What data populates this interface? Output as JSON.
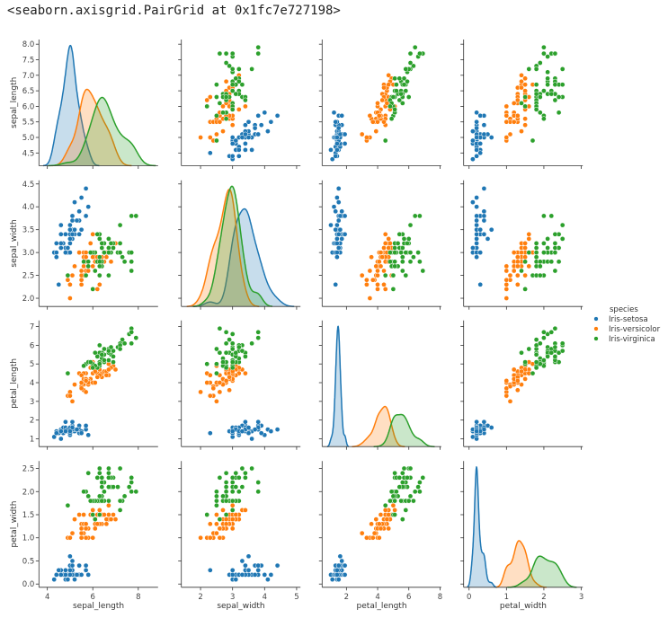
{
  "output_text": "<seaborn.axisgrid.PairGrid at 0x1fc7e727198>",
  "chart_data": {
    "type": "scatter",
    "kind": "pairplot",
    "diag_kind": "kde",
    "variables": [
      "sepal_length",
      "sepal_width",
      "petal_length",
      "petal_width"
    ],
    "axis_ranges": {
      "sepal_length": [
        3.63,
        8.87
      ],
      "sepal_width": [
        1.4,
        5.12
      ],
      "petal_length": [
        0.44,
        8.08
      ],
      "petal_width": [
        -0.145,
        3.04
      ]
    },
    "y_axis_ranges": {
      "sepal_length": [
        4.09,
        8.15
      ],
      "sepal_width": [
        1.82,
        4.58
      ],
      "petal_length": [
        0.58,
        7.33
      ],
      "petal_width": [
        -0.07,
        2.66
      ]
    },
    "x_ticks": {
      "sepal_length": [
        "4",
        "6",
        "8"
      ],
      "sepal_width": [
        "2",
        "3",
        "4",
        "5"
      ],
      "petal_length": [
        "2",
        "4",
        "6",
        "8"
      ],
      "petal_width": [
        "0",
        "1",
        "2",
        "3"
      ]
    },
    "y_ticks": {
      "sepal_length": [
        "4.5",
        "5.0",
        "5.5",
        "6.0",
        "6.5",
        "7.0",
        "7.5",
        "8.0"
      ],
      "sepal_width": [
        "2.0",
        "2.5",
        "3.0",
        "3.5",
        "4.0",
        "4.5"
      ],
      "petal_length": [
        "1",
        "2",
        "3",
        "4",
        "5",
        "6",
        "7"
      ],
      "petal_width": [
        "0.0",
        "0.5",
        "1.0",
        "1.5",
        "2.0",
        "2.5"
      ]
    },
    "grid": false,
    "legend": {
      "title": "species",
      "placement": "right",
      "entries": [
        "Iris-setosa",
        "Iris-versicolor",
        "Iris-virginica"
      ],
      "colors": [
        "#1f77b4",
        "#ff7f0e",
        "#2ca02c"
      ]
    },
    "rows": [
      [
        5.1,
        3.5,
        1.4,
        0.2,
        0
      ],
      [
        4.9,
        3.0,
        1.4,
        0.2,
        0
      ],
      [
        4.7,
        3.2,
        1.3,
        0.2,
        0
      ],
      [
        4.6,
        3.1,
        1.5,
        0.2,
        0
      ],
      [
        5.0,
        3.6,
        1.4,
        0.2,
        0
      ],
      [
        5.4,
        3.9,
        1.7,
        0.4,
        0
      ],
      [
        4.6,
        3.4,
        1.4,
        0.3,
        0
      ],
      [
        5.0,
        3.4,
        1.5,
        0.2,
        0
      ],
      [
        4.4,
        2.9,
        1.4,
        0.2,
        0
      ],
      [
        4.9,
        3.1,
        1.5,
        0.1,
        0
      ],
      [
        5.4,
        3.7,
        1.5,
        0.2,
        0
      ],
      [
        4.8,
        3.4,
        1.6,
        0.2,
        0
      ],
      [
        4.8,
        3.0,
        1.4,
        0.1,
        0
      ],
      [
        4.3,
        3.0,
        1.1,
        0.1,
        0
      ],
      [
        5.8,
        4.0,
        1.2,
        0.2,
        0
      ],
      [
        5.7,
        4.4,
        1.5,
        0.4,
        0
      ],
      [
        5.4,
        3.9,
        1.3,
        0.4,
        0
      ],
      [
        5.1,
        3.5,
        1.4,
        0.3,
        0
      ],
      [
        5.7,
        3.8,
        1.7,
        0.3,
        0
      ],
      [
        5.1,
        3.8,
        1.5,
        0.3,
        0
      ],
      [
        5.4,
        3.4,
        1.7,
        0.2,
        0
      ],
      [
        5.1,
        3.7,
        1.5,
        0.4,
        0
      ],
      [
        4.6,
        3.6,
        1.0,
        0.2,
        0
      ],
      [
        5.1,
        3.3,
        1.7,
        0.5,
        0
      ],
      [
        4.8,
        3.4,
        1.9,
        0.2,
        0
      ],
      [
        5.0,
        3.0,
        1.6,
        0.2,
        0
      ],
      [
        5.0,
        3.4,
        1.6,
        0.4,
        0
      ],
      [
        5.2,
        3.5,
        1.5,
        0.2,
        0
      ],
      [
        5.2,
        3.4,
        1.4,
        0.2,
        0
      ],
      [
        4.7,
        3.2,
        1.6,
        0.2,
        0
      ],
      [
        4.8,
        3.1,
        1.6,
        0.2,
        0
      ],
      [
        5.4,
        3.4,
        1.5,
        0.4,
        0
      ],
      [
        5.2,
        4.1,
        1.5,
        0.1,
        0
      ],
      [
        5.5,
        4.2,
        1.4,
        0.2,
        0
      ],
      [
        4.9,
        3.1,
        1.5,
        0.1,
        0
      ],
      [
        5.0,
        3.2,
        1.2,
        0.2,
        0
      ],
      [
        5.5,
        3.5,
        1.3,
        0.2,
        0
      ],
      [
        4.9,
        3.1,
        1.5,
        0.1,
        0
      ],
      [
        4.4,
        3.0,
        1.3,
        0.2,
        0
      ],
      [
        5.1,
        3.4,
        1.5,
        0.2,
        0
      ],
      [
        5.0,
        3.5,
        1.3,
        0.3,
        0
      ],
      [
        4.5,
        2.3,
        1.3,
        0.3,
        0
      ],
      [
        4.4,
        3.2,
        1.3,
        0.2,
        0
      ],
      [
        5.0,
        3.5,
        1.6,
        0.6,
        0
      ],
      [
        5.1,
        3.8,
        1.9,
        0.4,
        0
      ],
      [
        4.8,
        3.0,
        1.4,
        0.3,
        0
      ],
      [
        5.1,
        3.8,
        1.6,
        0.2,
        0
      ],
      [
        4.6,
        3.2,
        1.4,
        0.2,
        0
      ],
      [
        5.3,
        3.7,
        1.5,
        0.2,
        0
      ],
      [
        5.0,
        3.3,
        1.4,
        0.2,
        0
      ],
      [
        7.0,
        3.2,
        4.7,
        1.4,
        1
      ],
      [
        6.4,
        3.2,
        4.5,
        1.5,
        1
      ],
      [
        6.9,
        3.1,
        4.9,
        1.5,
        1
      ],
      [
        5.5,
        2.3,
        4.0,
        1.3,
        1
      ],
      [
        6.5,
        2.8,
        4.6,
        1.5,
        1
      ],
      [
        5.7,
        2.8,
        4.5,
        1.3,
        1
      ],
      [
        6.3,
        3.3,
        4.7,
        1.6,
        1
      ],
      [
        4.9,
        2.4,
        3.3,
        1.0,
        1
      ],
      [
        6.6,
        2.9,
        4.6,
        1.3,
        1
      ],
      [
        5.2,
        2.7,
        3.9,
        1.4,
        1
      ],
      [
        5.0,
        2.0,
        3.5,
        1.0,
        1
      ],
      [
        5.9,
        3.0,
        4.2,
        1.5,
        1
      ],
      [
        6.0,
        2.2,
        4.0,
        1.0,
        1
      ],
      [
        6.1,
        2.9,
        4.7,
        1.4,
        1
      ],
      [
        5.6,
        2.9,
        3.6,
        1.3,
        1
      ],
      [
        6.7,
        3.1,
        4.4,
        1.4,
        1
      ],
      [
        5.6,
        3.0,
        4.5,
        1.5,
        1
      ],
      [
        5.8,
        2.7,
        4.1,
        1.0,
        1
      ],
      [
        6.2,
        2.2,
        4.5,
        1.5,
        1
      ],
      [
        5.6,
        2.5,
        3.9,
        1.1,
        1
      ],
      [
        5.9,
        3.2,
        4.8,
        1.8,
        1
      ],
      [
        6.1,
        2.8,
        4.0,
        1.3,
        1
      ],
      [
        6.3,
        2.5,
        4.9,
        1.5,
        1
      ],
      [
        6.1,
        2.8,
        4.7,
        1.2,
        1
      ],
      [
        6.4,
        2.9,
        4.3,
        1.3,
        1
      ],
      [
        6.6,
        3.0,
        4.4,
        1.4,
        1
      ],
      [
        6.8,
        2.8,
        4.8,
        1.4,
        1
      ],
      [
        6.7,
        3.0,
        5.0,
        1.7,
        1
      ],
      [
        6.0,
        2.9,
        4.5,
        1.5,
        1
      ],
      [
        5.7,
        2.6,
        3.5,
        1.0,
        1
      ],
      [
        5.5,
        2.4,
        3.8,
        1.1,
        1
      ],
      [
        5.5,
        2.4,
        3.7,
        1.0,
        1
      ],
      [
        5.8,
        2.7,
        3.9,
        1.2,
        1
      ],
      [
        6.0,
        2.7,
        5.1,
        1.6,
        1
      ],
      [
        5.4,
        3.0,
        4.5,
        1.5,
        1
      ],
      [
        6.0,
        3.4,
        4.5,
        1.6,
        1
      ],
      [
        6.7,
        3.1,
        4.7,
        1.5,
        1
      ],
      [
        6.3,
        2.3,
        4.4,
        1.3,
        1
      ],
      [
        5.6,
        3.0,
        4.1,
        1.3,
        1
      ],
      [
        5.5,
        2.5,
        4.0,
        1.3,
        1
      ],
      [
        5.5,
        2.6,
        4.4,
        1.2,
        1
      ],
      [
        6.1,
        3.0,
        4.6,
        1.4,
        1
      ],
      [
        5.8,
        2.6,
        4.0,
        1.2,
        1
      ],
      [
        5.0,
        2.3,
        3.3,
        1.0,
        1
      ],
      [
        5.6,
        2.7,
        4.2,
        1.3,
        1
      ],
      [
        5.7,
        3.0,
        4.2,
        1.2,
        1
      ],
      [
        5.7,
        2.9,
        4.2,
        1.3,
        1
      ],
      [
        6.2,
        2.9,
        4.3,
        1.3,
        1
      ],
      [
        5.1,
        2.5,
        3.0,
        1.1,
        1
      ],
      [
        5.7,
        2.8,
        4.1,
        1.3,
        1
      ],
      [
        6.3,
        3.3,
        6.0,
        2.5,
        2
      ],
      [
        5.8,
        2.7,
        5.1,
        1.9,
        2
      ],
      [
        7.1,
        3.0,
        5.9,
        2.1,
        2
      ],
      [
        6.3,
        2.9,
        5.6,
        1.8,
        2
      ],
      [
        6.5,
        3.0,
        5.8,
        2.2,
        2
      ],
      [
        7.6,
        3.0,
        6.6,
        2.1,
        2
      ],
      [
        4.9,
        2.5,
        4.5,
        1.7,
        2
      ],
      [
        7.3,
        2.9,
        6.3,
        1.8,
        2
      ],
      [
        6.7,
        2.5,
        5.8,
        1.8,
        2
      ],
      [
        7.2,
        3.6,
        6.1,
        2.5,
        2
      ],
      [
        6.5,
        3.2,
        5.1,
        2.0,
        2
      ],
      [
        6.4,
        2.7,
        5.3,
        1.9,
        2
      ],
      [
        6.8,
        3.0,
        5.5,
        2.1,
        2
      ],
      [
        5.7,
        2.5,
        5.0,
        2.0,
        2
      ],
      [
        5.8,
        2.8,
        5.1,
        2.4,
        2
      ],
      [
        6.4,
        3.2,
        5.3,
        2.3,
        2
      ],
      [
        6.5,
        3.0,
        5.5,
        1.8,
        2
      ],
      [
        7.7,
        3.8,
        6.7,
        2.2,
        2
      ],
      [
        7.7,
        2.6,
        6.9,
        2.3,
        2
      ],
      [
        6.0,
        2.2,
        5.0,
        1.5,
        2
      ],
      [
        6.9,
        3.2,
        5.7,
        2.3,
        2
      ],
      [
        5.6,
        2.8,
        4.9,
        2.0,
        2
      ],
      [
        7.7,
        2.8,
        6.7,
        2.0,
        2
      ],
      [
        6.3,
        2.7,
        4.9,
        1.8,
        2
      ],
      [
        6.7,
        3.3,
        5.7,
        2.1,
        2
      ],
      [
        7.2,
        3.2,
        6.0,
        1.8,
        2
      ],
      [
        6.2,
        2.8,
        4.8,
        1.8,
        2
      ],
      [
        6.1,
        3.0,
        4.9,
        1.8,
        2
      ],
      [
        6.4,
        2.8,
        5.6,
        2.1,
        2
      ],
      [
        7.2,
        3.0,
        5.8,
        1.6,
        2
      ],
      [
        7.4,
        2.8,
        6.1,
        1.9,
        2
      ],
      [
        7.9,
        3.8,
        6.4,
        2.0,
        2
      ],
      [
        6.4,
        2.8,
        5.6,
        2.2,
        2
      ],
      [
        6.3,
        2.8,
        5.1,
        1.5,
        2
      ],
      [
        6.1,
        2.6,
        5.6,
        1.4,
        2
      ],
      [
        7.7,
        3.0,
        6.1,
        2.3,
        2
      ],
      [
        6.3,
        3.4,
        5.6,
        2.4,
        2
      ],
      [
        6.4,
        3.1,
        5.5,
        1.8,
        2
      ],
      [
        6.0,
        3.0,
        4.8,
        1.8,
        2
      ],
      [
        6.9,
        3.1,
        5.4,
        2.1,
        2
      ],
      [
        6.7,
        3.1,
        5.6,
        2.4,
        2
      ],
      [
        6.9,
        3.1,
        5.1,
        2.3,
        2
      ],
      [
        5.8,
        2.7,
        5.1,
        1.9,
        2
      ],
      [
        6.8,
        3.2,
        5.9,
        2.3,
        2
      ],
      [
        6.7,
        3.3,
        5.7,
        2.5,
        2
      ],
      [
        6.7,
        3.0,
        5.2,
        2.3,
        2
      ],
      [
        6.3,
        2.5,
        5.0,
        1.9,
        2
      ],
      [
        6.5,
        3.0,
        5.2,
        2.0,
        2
      ],
      [
        6.2,
        3.4,
        5.4,
        2.3,
        2
      ],
      [
        5.9,
        3.0,
        5.1,
        1.8,
        2
      ]
    ]
  }
}
